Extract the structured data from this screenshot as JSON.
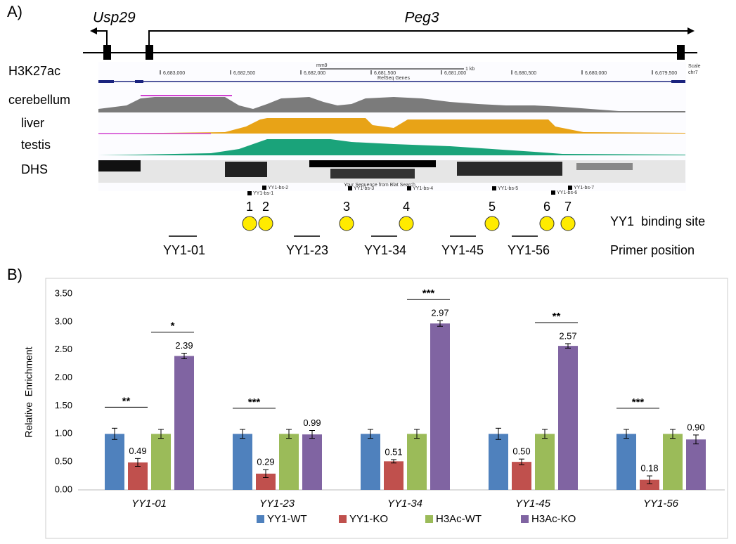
{
  "panel_a": {
    "label": "A)",
    "genes": [
      "Usp29",
      "Peg3"
    ],
    "tracks": [
      "H3K27ac",
      "cerebellum",
      "liver",
      "testis",
      "DHS"
    ],
    "browser": {
      "assembly": "mm9",
      "scale_bar": "1 kb",
      "scale": "Scale",
      "chrom": "chr7",
      "coordinates": [
        "6,683,000",
        "6,682,500",
        "6,682,000",
        "6,681,500",
        "6,681,000",
        "6,680,500",
        "6,680,000",
        "6,679,500"
      ],
      "refseq": "RefSeq Genes",
      "blat": "Your Sequence from Blat Search",
      "binding_site_labels": [
        "YY1-bs-1",
        "YY1-bs-2",
        "YY1-bs-3",
        "YY1-bs-4",
        "YY1-bs-5",
        "YY1-bs-6",
        "YY1-bs-7"
      ]
    },
    "binding_sites": [
      "1",
      "2",
      "3",
      "4",
      "5",
      "6",
      "7"
    ],
    "binding_site_caption": "YY1  binding site",
    "primers": [
      "YY1-01",
      "YY1-23",
      "YY1-34",
      "YY1-45",
      "YY1-56"
    ],
    "primer_caption": "Primer position"
  },
  "chart_data": {
    "type": "bar",
    "panel_label": "B)",
    "y_label": "Relative  Enrichment",
    "categories": [
      "YY1-01",
      "YY1-23",
      "YY1-34",
      "YY1-45",
      "YY1-56"
    ],
    "series": [
      {
        "name": "YY1-WT",
        "color": "#4f81bd",
        "values": [
          1.0,
          1.0,
          1.0,
          1.0,
          1.0
        ],
        "errors": [
          0.1,
          0.08,
          0.08,
          0.1,
          0.08
        ]
      },
      {
        "name": "YY1-KO",
        "color": "#c0504d",
        "values": [
          0.49,
          0.29,
          0.51,
          0.5,
          0.18
        ],
        "value_labels": [
          "0.49",
          "0.29",
          "0.51",
          "0.50",
          "0.18"
        ],
        "errors": [
          0.07,
          0.07,
          0.03,
          0.05,
          0.07
        ]
      },
      {
        "name": "H3Ac-WT",
        "color": "#9bbb59",
        "values": [
          1.0,
          1.0,
          1.0,
          1.0,
          1.0
        ],
        "errors": [
          0.08,
          0.08,
          0.08,
          0.08,
          0.08
        ]
      },
      {
        "name": "H3Ac-KO",
        "color": "#8064a2",
        "values": [
          2.39,
          0.99,
          2.97,
          2.57,
          0.9
        ],
        "value_labels": [
          "2.39",
          "0.99",
          "2.97",
          "2.57",
          "0.90"
        ],
        "errors": [
          0.05,
          0.07,
          0.05,
          0.04,
          0.08
        ]
      }
    ],
    "ylim": [
      0,
      3.5
    ],
    "yticks": [
      {
        "value": 0,
        "label": "0.00"
      },
      {
        "value": 0.5,
        "label": "0.50"
      },
      {
        "value": 1,
        "label": "1.00"
      },
      {
        "value": 1.5,
        "label": "1.50"
      },
      {
        "value": 2,
        "label": "2.00"
      },
      {
        "value": 2.5,
        "label": "2.50"
      },
      {
        "value": 3,
        "label": "3.00"
      },
      {
        "value": 3.5,
        "label": "3.50"
      }
    ],
    "significance": [
      {
        "text": "**",
        "category": "YY1-01",
        "pair": [
          "YY1-WT",
          "YY1-KO"
        ]
      },
      {
        "text": "*",
        "category": "YY1-01",
        "pair": [
          "H3Ac-WT",
          "H3Ac-KO"
        ]
      },
      {
        "text": "***",
        "category": "YY1-23",
        "pair": [
          "YY1-WT",
          "YY1-KO"
        ]
      },
      {
        "text": "***",
        "category": "YY1-34",
        "pair": [
          "H3Ac-WT",
          "H3Ac-KO"
        ]
      },
      {
        "text": "**",
        "category": "YY1-45",
        "pair": [
          "H3Ac-WT",
          "H3Ac-KO"
        ]
      },
      {
        "text": "***",
        "category": "YY1-56",
        "pair": [
          "YY1-WT",
          "YY1-KO"
        ]
      }
    ],
    "legend": "bottom",
    "grid": false
  }
}
